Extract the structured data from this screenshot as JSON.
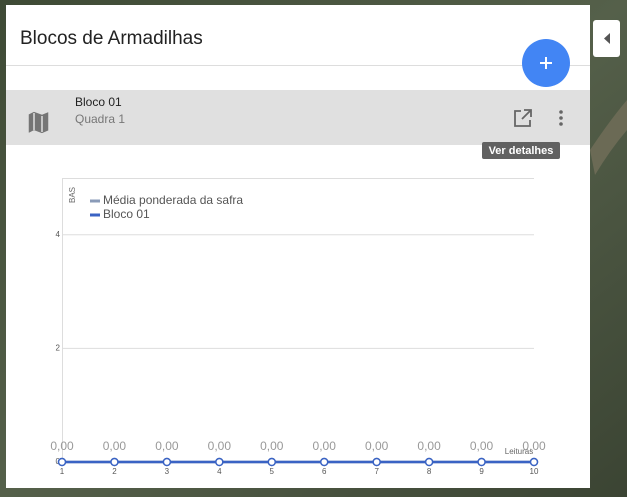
{
  "header": {
    "title": "Blocos de Armadilhas"
  },
  "list": {
    "items": [
      {
        "title": "Bloco 01",
        "subtitle": "Quadra 1"
      }
    ]
  },
  "tooltip": "Ver detalhes",
  "chart_data": {
    "type": "line",
    "y_label": "BAS",
    "x_label": "Leituras",
    "x": [
      1,
      2,
      3,
      4,
      5,
      6,
      7,
      8,
      9,
      10
    ],
    "xlim": [
      1,
      10
    ],
    "xticks": [
      1,
      2,
      3,
      4,
      5,
      6,
      7,
      8,
      9,
      10
    ],
    "ylim": [
      0,
      5
    ],
    "yticks": [
      0,
      2,
      4
    ],
    "grid": true,
    "series": [
      {
        "name": "Média ponderada da safra",
        "color": "#8a9bb8",
        "values": [
          0,
          0,
          0,
          0,
          0,
          0,
          0,
          0,
          0,
          0
        ]
      },
      {
        "name": "Bloco 01",
        "color": "#3a63c4",
        "values": [
          0,
          0,
          0,
          0,
          0,
          0,
          0,
          0,
          0,
          0
        ],
        "value_labels": [
          "0,00",
          "0,00",
          "0,00",
          "0,00",
          "0,00",
          "0,00",
          "0,00",
          "0,00",
          "0,00",
          "0,00"
        ]
      }
    ]
  }
}
